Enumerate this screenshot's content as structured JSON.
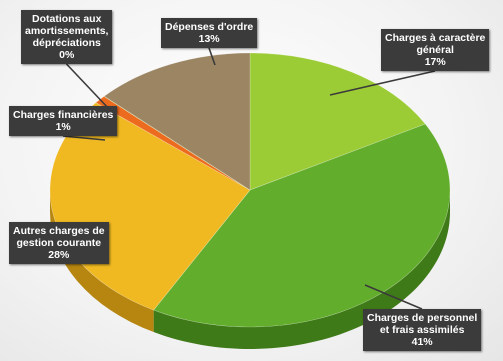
{
  "chart_data": {
    "type": "pie",
    "title": "",
    "slices": [
      {
        "name": "Charges à caractère général",
        "display_name": [
          "Charges à caractère",
          "général"
        ],
        "value": 17,
        "value_label": "17%",
        "color": "#9ccc35",
        "side_color": "#6f9a1f"
      },
      {
        "name": "Charges de personnel et frais assimilés",
        "display_name": [
          "Charges de personnel",
          "et frais assimilés"
        ],
        "value": 41,
        "value_label": "41%",
        "color": "#62ad2c",
        "side_color": "#3f7a18"
      },
      {
        "name": "Autres charges de gestion courante",
        "display_name": [
          "Autres charges de",
          "gestion courante"
        ],
        "value": 28,
        "value_label": "28%",
        "color": "#f0b922",
        "side_color": "#b68610"
      },
      {
        "name": "Charges financières",
        "display_name": [
          "Charges financières"
        ],
        "value": 1,
        "value_label": "1%",
        "color": "#ed6b1f",
        "side_color": "#b24a0f"
      },
      {
        "name": "Dotations aux amortissements, dépréciations",
        "display_name": [
          "Dotations aux",
          "amortissements,",
          "dépréciations"
        ],
        "value": 0,
        "value_label": "0%",
        "color": "#d9e8a8",
        "side_color": "#a7b780"
      },
      {
        "name": "Dépenses d'ordre",
        "display_name": [
          "Dépenses d'ordre"
        ],
        "value": 13,
        "value_label": "13%",
        "color": "#9b8563",
        "side_color": "#6d5b40"
      }
    ],
    "start_angle_deg": -90,
    "direction": "clockwise",
    "style": "3d-pie",
    "legend": "none",
    "data_labels": "callout-boxes"
  }
}
